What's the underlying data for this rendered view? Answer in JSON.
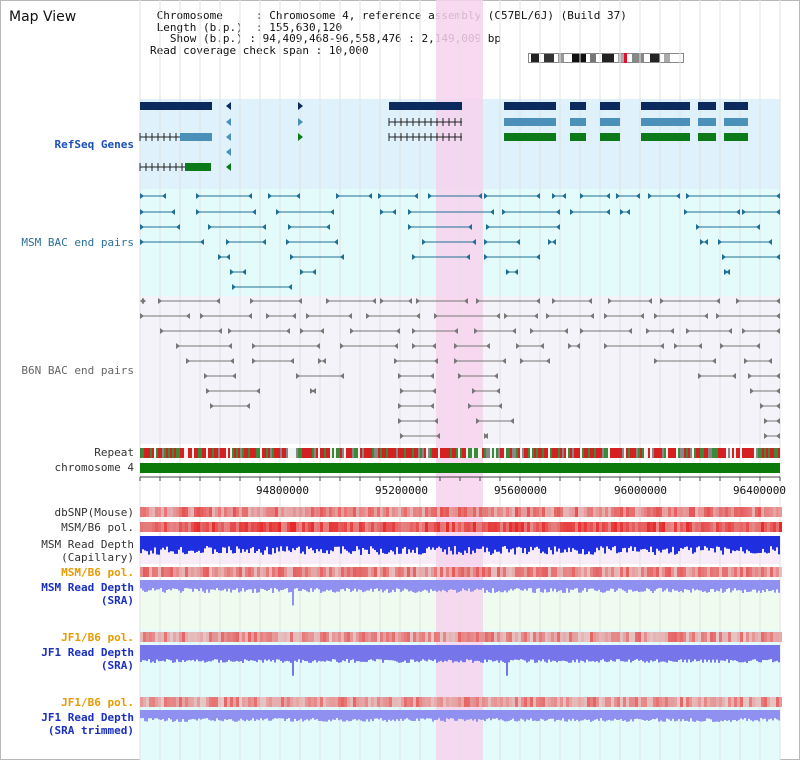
{
  "title": "Map View",
  "info": {
    "chromosome_key": "Chromosome",
    "chromosome_val": "Chromosome 4, reference assembly (C57BL/6J) (Build 37)",
    "length_key": "Length (b.p.)",
    "length_val": "155,630,120",
    "show_key": "Show (b.p.)",
    "show_val": "94,409,468-96,558,476 : 2,149,009 bp",
    "coverage_key": "Read coverage check span",
    "coverage_val": "10,000"
  },
  "tracks": {
    "refseq": "RefSeq Genes",
    "msm_bac": "MSM BAC end pairs",
    "b6n_bac": "B6N BAC end pairs",
    "repeat": "Repeat",
    "chromosome": "chromosome 4",
    "dbsnp": "dbSNP(Mouse)",
    "msm_b6_pol_1": "MSM/B6 pol.",
    "msm_read_depth_cap_1": "MSM Read Depth",
    "msm_read_depth_cap_2": "(Capillary)",
    "msm_b6_pol_2": "MSM/B6 pol.",
    "msm_read_depth_sra_1": "MSM Read Depth",
    "msm_read_depth_sra_2": "(SRA)",
    "jf1_b6_pol_1": "JF1/B6 pol.",
    "jf1_read_depth_sra_1": "JF1 Read Depth",
    "jf1_read_depth_sra_2": "(SRA)",
    "jf1_b6_pol_2": "JF1/B6 pol.",
    "jf1_read_depth_trim_1": "JF1 Read Depth",
    "jf1_read_depth_trim_2": "(SRA trimmed)"
  },
  "axis_ticks": [
    "94800000",
    "95200000",
    "95600000",
    "96000000",
    "96400000"
  ],
  "colors": {
    "refseq_dark": "#0c2a5e",
    "refseq_mid": "#4a90b8",
    "refseq_green": "#0d7a1a",
    "msm_bac": "#1f6f96",
    "b6n_bac": "#777777",
    "chromosome": "#0b7a0b",
    "highlight": "#f7d2ef"
  }
}
